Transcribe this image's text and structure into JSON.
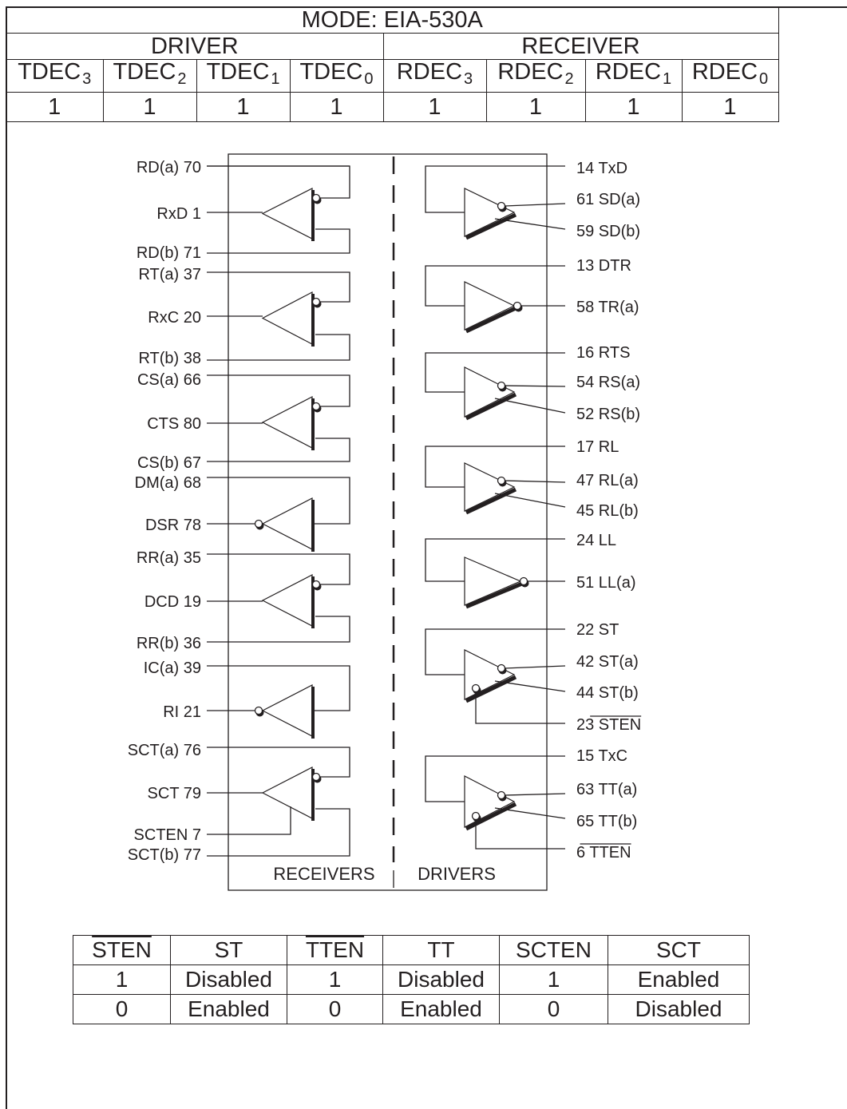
{
  "mode_title": "MODE: EIA-530A",
  "driver_header": "DRIVER",
  "receiver_header": "RECEIVER",
  "decoder_columns": [
    {
      "base": "TDEC",
      "sub": "3",
      "value": "1"
    },
    {
      "base": "TDEC",
      "sub": "2",
      "value": "1"
    },
    {
      "base": "TDEC",
      "sub": "1",
      "value": "1"
    },
    {
      "base": "TDEC",
      "sub": "0",
      "value": "1"
    },
    {
      "base": "RDEC",
      "sub": "3",
      "value": "1"
    },
    {
      "base": "RDEC",
      "sub": "2",
      "value": "1"
    },
    {
      "base": "RDEC",
      "sub": "1",
      "value": "1"
    },
    {
      "base": "RDEC",
      "sub": "0",
      "value": "1"
    }
  ],
  "diagram": {
    "receivers_label": "RECEIVERS",
    "drivers_label": "DRIVERS",
    "left_pins": [
      "RD(a) 70",
      "RxD 1",
      "RD(b) 71",
      "RT(a) 37",
      "RxC 20",
      "RT(b) 38",
      "CS(a) 66",
      "CTS 80",
      "CS(b) 67",
      "DM(a) 68",
      "DSR 78",
      "RR(a) 35",
      "DCD 19",
      "RR(b) 36",
      "IC(a) 39",
      "RI 21",
      "SCT(a) 76",
      "SCT 79",
      "SCTEN 7",
      "SCT(b) 77"
    ],
    "right_pins": [
      "14 TxD",
      "61 SD(a)",
      "59 SD(b)",
      "13 DTR",
      "58 TR(a)",
      "16 RTS",
      "54 RS(a)",
      "52 RS(b)",
      "17 RL",
      "47 RL(a)",
      "45 RL(b)",
      "24 LL",
      "51 LL(a)",
      "22 ST",
      "42 ST(a)",
      "44 ST(b)",
      "23 STEN",
      "15 TxC",
      "63 TT(a)",
      "65 TT(b)",
      "6 TTEN"
    ]
  },
  "truth_table": {
    "headers": [
      "STEN",
      "ST",
      "TTEN",
      "TT",
      "SCTEN",
      "SCT"
    ],
    "rows": [
      [
        "1",
        "Disabled",
        "1",
        "Disabled",
        "1",
        "Enabled"
      ],
      [
        "0",
        "Enabled",
        "0",
        "Enabled",
        "0",
        "Disabled"
      ]
    ]
  }
}
